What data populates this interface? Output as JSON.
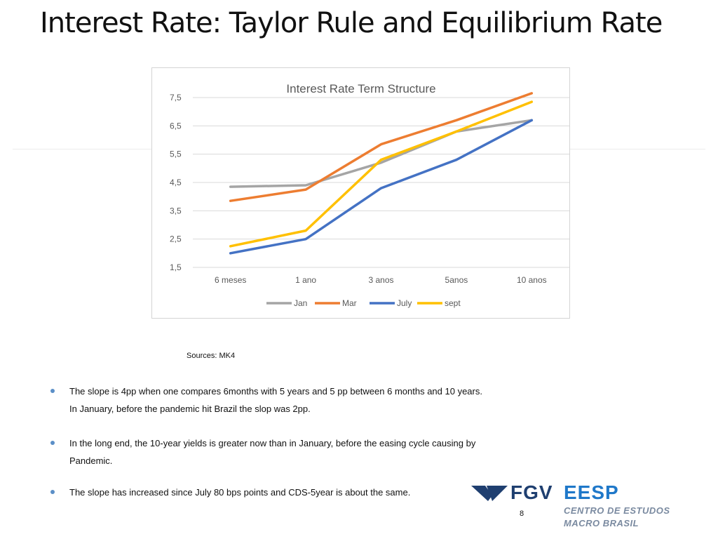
{
  "slide": {
    "title": "Interest Rate: Taylor Rule and Equilibrium Rate",
    "sources": "Sources: MK4",
    "page_number": "8"
  },
  "bullets": [
    {
      "text": "The slope is 4pp when one compares 6months with 5 years and 5 pp between 6 months and 10 years.  In January, before the pandemic hit Brazil the slop was 2pp."
    },
    {
      "text": "In the long end, the 10-year yields is greater now than in January, before the easing cycle causing by Pandemic."
    },
    {
      "text": "The slope has increased since July 80 bps points and CDS-5year is about the same."
    }
  ],
  "logo": {
    "fgv": "FGV",
    "eesp": "EESP",
    "line1": "CENTRO DE ESTUDOS",
    "line2": "MACRO BRASIL"
  },
  "colors": {
    "jan": "#a5a5a5",
    "mar": "#ed7d31",
    "july": "#4472c4",
    "sept": "#ffc000",
    "accent": "#1f78c9"
  },
  "chart_data": {
    "type": "line",
    "title": "Interest Rate Term Structure",
    "categories": [
      "6 meses",
      "1 ano",
      "3 anos",
      "5anos",
      "10 anos"
    ],
    "yticks": [
      "7,5",
      "6,5",
      "5,5",
      "4,5",
      "3,5",
      "2,5",
      "1,5"
    ],
    "ylim": [
      1.5,
      7.5
    ],
    "grid": true,
    "legend": "bottom",
    "series": [
      {
        "name": "Jan",
        "color": "#a5a5a5",
        "values": [
          4.35,
          4.4,
          5.2,
          6.3,
          6.7
        ]
      },
      {
        "name": "Mar",
        "color": "#ed7d31",
        "values": [
          3.85,
          4.25,
          5.85,
          6.7,
          7.65
        ]
      },
      {
        "name": "July",
        "color": "#4472c4",
        "values": [
          2.0,
          2.5,
          4.3,
          5.3,
          6.7
        ]
      },
      {
        "name": "sept",
        "color": "#ffc000",
        "values": [
          2.25,
          2.8,
          5.3,
          6.3,
          7.35
        ]
      }
    ]
  }
}
